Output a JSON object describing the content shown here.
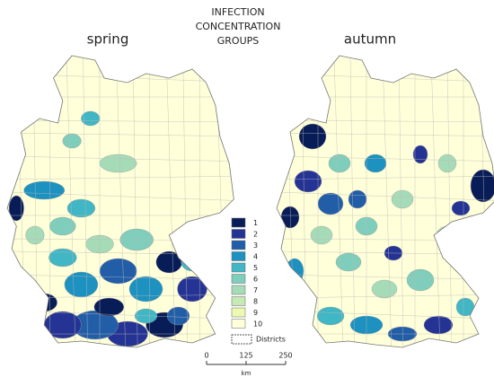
{
  "title": [
    "INFECTION",
    "CONCENTRATION",
    "GROUPS"
  ],
  "maps": [
    {
      "label": "spring"
    },
    {
      "label": "autumn"
    }
  ],
  "legend": {
    "items": [
      {
        "label": "1",
        "color": "#081d58"
      },
      {
        "label": "2",
        "color": "#253494"
      },
      {
        "label": "3",
        "color": "#225ea8"
      },
      {
        "label": "4",
        "color": "#1d91c0"
      },
      {
        "label": "5",
        "color": "#41b6c4"
      },
      {
        "label": "6",
        "color": "#7fcdbb"
      },
      {
        "label": "7",
        "color": "#a6dbb8"
      },
      {
        "label": "8",
        "color": "#c7e9b4"
      },
      {
        "label": "9",
        "color": "#edf8b1"
      },
      {
        "label": "10",
        "color": "#ffffd9"
      }
    ],
    "districts_label": "Districts"
  },
  "scale_bar": {
    "ticks": [
      0,
      125,
      250
    ],
    "unit": "km"
  }
}
